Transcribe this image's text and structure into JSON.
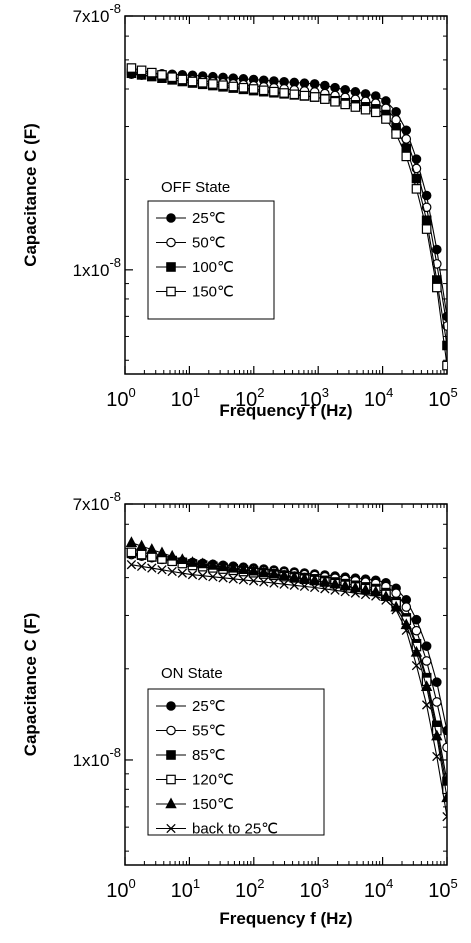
{
  "chart_data": [
    {
      "type": "line",
      "title": "",
      "xlabel": "Frequency f (Hz)",
      "ylabel": "Capacitance C (F)",
      "xscale": "log",
      "yscale": "log",
      "xlim": [
        1,
        100000
      ],
      "ylim": [
        4.5e-09,
        7e-08
      ],
      "x_ticks": [
        {
          "base": "10",
          "exp": "0"
        },
        {
          "base": "10",
          "exp": "1"
        },
        {
          "base": "10",
          "exp": "2"
        },
        {
          "base": "10",
          "exp": "3"
        },
        {
          "base": "10",
          "exp": "4"
        },
        {
          "base": "10",
          "exp": "5"
        }
      ],
      "y_ticks": [
        {
          "value": 1e-08,
          "label": "1x10",
          "exp": "-8"
        },
        {
          "value": 7e-08,
          "label": "7x10",
          "exp": "-8"
        }
      ],
      "legend_title": "OFF State",
      "legend_position": "center-left",
      "series": [
        {
          "name": "25℃",
          "marker": "circle-filled",
          "x": [
            1,
            10,
            100,
            1000,
            10000,
            20000,
            40000,
            60000,
            80000,
            100000
          ],
          "y": [
            4.55e-08,
            4.45e-08,
            4.3e-08,
            4.15e-08,
            3.75e-08,
            3.2e-08,
            2.1e-08,
            1.45e-08,
            9.5e-09,
            7e-09
          ]
        },
        {
          "name": "50℃",
          "marker": "circle-open",
          "x": [
            1,
            10,
            100,
            1000,
            10000,
            20000,
            40000,
            60000,
            80000,
            100000
          ],
          "y": [
            4.5e-08,
            4.3e-08,
            4.1e-08,
            3.9e-08,
            3.55e-08,
            3e-08,
            1.95e-08,
            1.3e-08,
            8.5e-09,
            6.5e-09
          ]
        },
        {
          "name": "100℃",
          "marker": "square-filled",
          "x": [
            1,
            10,
            100,
            1000,
            10000,
            20000,
            40000,
            60000,
            80000,
            100000
          ],
          "y": [
            4.55e-08,
            4.2e-08,
            3.95e-08,
            3.75e-08,
            3.4e-08,
            2.8e-08,
            1.8e-08,
            1.15e-08,
            7.5e-09,
            5.6e-09
          ]
        },
        {
          "name": "150℃",
          "marker": "square-open",
          "x": [
            1,
            10,
            100,
            1000,
            10000,
            20000,
            40000,
            60000,
            80000,
            100000
          ],
          "y": [
            4.75e-08,
            4.25e-08,
            4e-08,
            3.75e-08,
            3.3e-08,
            2.65e-08,
            1.65e-08,
            1.1e-08,
            7e-09,
            4.8e-09
          ]
        }
      ]
    },
    {
      "type": "line",
      "title": "",
      "xlabel": "Frequency f (Hz)",
      "ylabel": "Capacitance C (F)",
      "xscale": "log",
      "yscale": "log",
      "xlim": [
        1,
        100000
      ],
      "ylim": [
        4.5e-09,
        7e-08
      ],
      "x_ticks": [
        {
          "base": "10",
          "exp": "0"
        },
        {
          "base": "10",
          "exp": "1"
        },
        {
          "base": "10",
          "exp": "2"
        },
        {
          "base": "10",
          "exp": "3"
        },
        {
          "base": "10",
          "exp": "4"
        },
        {
          "base": "10",
          "exp": "5"
        }
      ],
      "y_ticks": [
        {
          "value": 1e-08,
          "label": "1x10",
          "exp": "-8"
        },
        {
          "value": 7e-08,
          "label": "7x10",
          "exp": "-8"
        }
      ],
      "legend_title": "ON State",
      "legend_position": "center-left",
      "series": [
        {
          "name": "25℃",
          "marker": "circle-filled",
          "x": [
            1,
            10,
            100,
            1000,
            10000,
            20000,
            40000,
            60000,
            80000,
            100000
          ],
          "y": [
            4.8e-08,
            4.5e-08,
            4.3e-08,
            4.1e-08,
            3.9e-08,
            3.6e-08,
            2.7e-08,
            2.05e-08,
            1.6e-08,
            1.25e-08
          ]
        },
        {
          "name": "55℃",
          "marker": "circle-open",
          "x": [
            1,
            10,
            100,
            1000,
            10000,
            20000,
            40000,
            60000,
            80000,
            100000
          ],
          "y": [
            4.8e-08,
            4.45e-08,
            4.25e-08,
            4.05e-08,
            3.8e-08,
            3.45e-08,
            2.45e-08,
            1.8e-08,
            1.35e-08,
            1.1e-08
          ]
        },
        {
          "name": "85℃",
          "marker": "square-filled",
          "x": [
            1,
            10,
            100,
            1000,
            10000,
            20000,
            40000,
            60000,
            80000,
            100000
          ],
          "y": [
            4.85e-08,
            4.45e-08,
            4.2e-08,
            3.95e-08,
            3.65e-08,
            3.2e-08,
            2.2e-08,
            1.55e-08,
            1.1e-08,
            8.5e-09
          ]
        },
        {
          "name": "120℃",
          "marker": "square-open",
          "x": [
            1,
            10,
            100,
            1000,
            10000,
            20000,
            40000,
            60000,
            80000,
            100000
          ],
          "y": [
            4.9e-08,
            4.4e-08,
            4.15e-08,
            3.9e-08,
            3.6e-08,
            3.15e-08,
            2.15e-08,
            1.5e-08,
            1.05e-08,
            8e-09
          ]
        },
        {
          "name": "150℃",
          "marker": "triangle-filled",
          "x": [
            1,
            10,
            100,
            1000,
            10000,
            20000,
            40000,
            60000,
            80000,
            100000
          ],
          "y": [
            5.3e-08,
            4.5e-08,
            4.2e-08,
            3.9e-08,
            3.55e-08,
            3.05e-08,
            2.05e-08,
            1.45e-08,
            1e-08,
            7.5e-09
          ]
        },
        {
          "name": "back to 25℃",
          "marker": "cross",
          "x": [
            1,
            10,
            100,
            1000,
            10000,
            20000,
            40000,
            60000,
            80000,
            100000
          ],
          "y": [
            4.45e-08,
            4.1e-08,
            3.9e-08,
            3.7e-08,
            3.45e-08,
            3e-08,
            1.8e-08,
            1.25e-08,
            8.5e-09,
            6.5e-09
          ]
        }
      ]
    }
  ]
}
